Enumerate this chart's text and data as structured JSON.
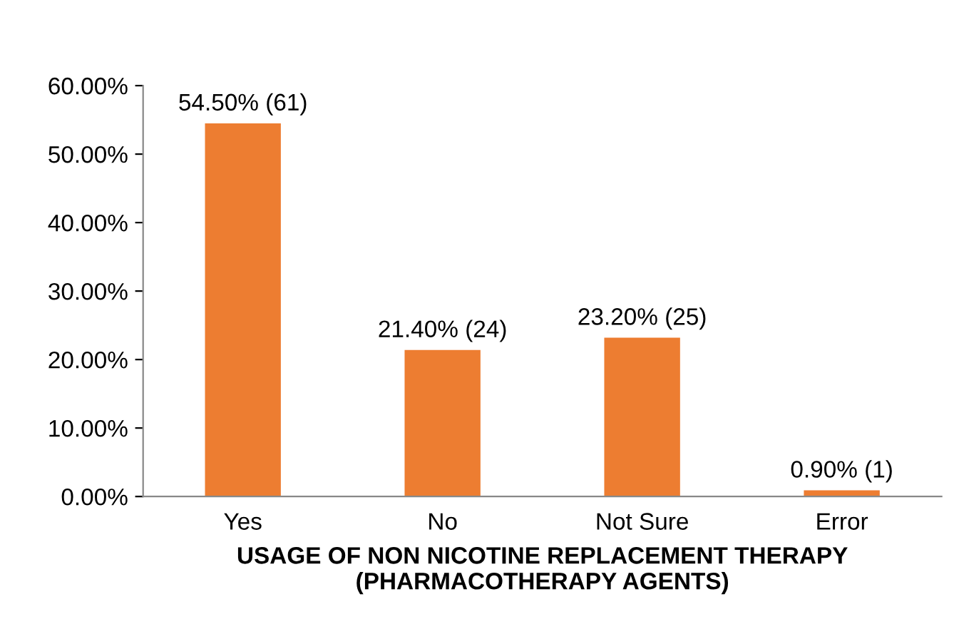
{
  "chart_data": {
    "type": "bar",
    "categories": [
      "Yes",
      "No",
      "Not Sure",
      "Error"
    ],
    "values": [
      54.5,
      21.4,
      23.2,
      0.9
    ],
    "value_labels": [
      "54.50% (61)",
      "21.40% (24)",
      "23.20% (25)",
      "0.90% (1)"
    ],
    "color": "#ed7d31",
    "xlabel": "USAGE OF NON NICOTINE REPLACEMENT THERAPY\n(PHARMACOTHERAPY AGENTS)",
    "ylim": [
      0,
      60
    ],
    "yticks": [
      {
        "value": 0,
        "label": "0.00%"
      },
      {
        "value": 10,
        "label": "10.00%"
      },
      {
        "value": 20,
        "label": "20.00%"
      },
      {
        "value": 30,
        "label": "30.00%"
      },
      {
        "value": 40,
        "label": "40.00%"
      },
      {
        "value": 50,
        "label": "50.00%"
      },
      {
        "value": 60,
        "label": "60.00%"
      }
    ],
    "grid": false,
    "legend": false
  }
}
